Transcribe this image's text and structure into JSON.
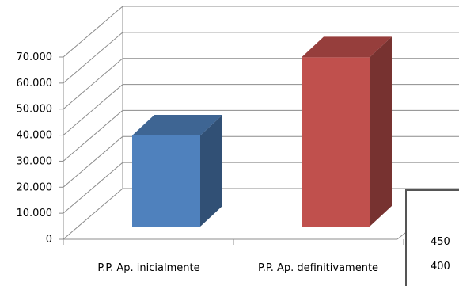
{
  "chart_data": {
    "type": "bar",
    "categories": [
      "P.P. Ap. inicialmente",
      "P.P. Ap. definitivamente"
    ],
    "values": [
      35000,
      65000
    ],
    "colors": [
      "#4f81bd",
      "#c0504d"
    ],
    "y_tick_labels": [
      "0",
      "10.000",
      "20.000",
      "30.000",
      "40.000",
      "50.000",
      "60.000",
      "70.000"
    ],
    "ylim": [
      0,
      70000
    ],
    "grid": true,
    "legend": "none",
    "title": "",
    "xlabel": "",
    "ylabel": ""
  },
  "inset": {
    "labels": [
      "450",
      "400"
    ]
  }
}
